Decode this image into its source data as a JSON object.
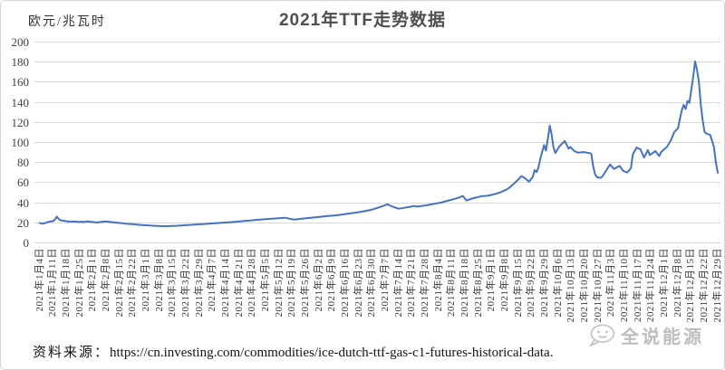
{
  "source": {
    "label": "资料来源：",
    "url": "https://cn.investing.com/commodities/ice-dutch-ttf-gas-c1-futures-historical-data."
  },
  "watermark": {
    "text": "全说能源",
    "icon": "speech-bubble-face"
  },
  "chart_data": {
    "type": "line",
    "title": "2021年TTF走势数据",
    "ylabel": "欧元/兆瓦时",
    "xlabel": "",
    "ylim": [
      0,
      200
    ],
    "yticks": [
      0,
      20,
      40,
      60,
      80,
      100,
      120,
      140,
      160,
      180,
      200
    ],
    "grid": "horizontal",
    "legend": "none",
    "line_color": "#4472c4",
    "grid_color": "#d9d9d9",
    "x_encoding": "day_of_year_2021",
    "x_range_days": [
      4,
      363
    ],
    "x_tick_labels": [
      "2021年1月4日",
      "2021年1月11日",
      "2021年1月18日",
      "2021年1月25日",
      "2021年2月1日",
      "2021年2月8日",
      "2021年2月15日",
      "2021年2月22日",
      "2021年3月1日",
      "2021年3月8日",
      "2021年3月15日",
      "2021年3月22日",
      "2021年3月29日",
      "2021年4月7日",
      "2021年4月14日",
      "2021年4月21日",
      "2021年4月28日",
      "2021年5月5日",
      "2021年5月12日",
      "2021年5月19日",
      "2021年5月26日",
      "2021年6月2日",
      "2021年6月9日",
      "2021年6月16日",
      "2021年6月23日",
      "2021年6月30日",
      "2021年7月7日",
      "2021年7月14日",
      "2021年7月21日",
      "2021年7月28日",
      "2021年8月4日",
      "2021年8月11日",
      "2021年8月18日",
      "2021年8月25日",
      "2021年9月1日",
      "2021年9月8日",
      "2021年9月15日",
      "2021年9月22日",
      "2021年9月29日",
      "2021年10月6日",
      "2021年10月13日",
      "2021年10月20日",
      "2021年10月27日",
      "2021年11月3日",
      "2021年11月10日",
      "2021年11月17日",
      "2021年11月24日",
      "2021年12月1日",
      "2021年12月8日",
      "2021年12月15日",
      "2021年12月22日",
      "2021年12月29日"
    ],
    "series": [
      {
        "name": "TTF",
        "unit": "欧元/兆瓦时",
        "points": [
          [
            4,
            19.5
          ],
          [
            5,
            18.6
          ],
          [
            6,
            19.0
          ],
          [
            7,
            19.4
          ],
          [
            8,
            20.3
          ],
          [
            11,
            21.3
          ],
          [
            12,
            23.0
          ],
          [
            13,
            25.8
          ],
          [
            14,
            23.3
          ],
          [
            15,
            22.0
          ],
          [
            18,
            21.2
          ],
          [
            19,
            20.7
          ],
          [
            20,
            21.0
          ],
          [
            21,
            20.6
          ],
          [
            22,
            20.9
          ],
          [
            25,
            20.4
          ],
          [
            26,
            20.7
          ],
          [
            27,
            20.3
          ],
          [
            28,
            20.6
          ],
          [
            29,
            20.9
          ],
          [
            32,
            20.4
          ],
          [
            34,
            19.9
          ],
          [
            36,
            20.4
          ],
          [
            39,
            21.0
          ],
          [
            41,
            20.5
          ],
          [
            43,
            20.0
          ],
          [
            46,
            19.5
          ],
          [
            48,
            19.0
          ],
          [
            50,
            18.6
          ],
          [
            53,
            18.2
          ],
          [
            55,
            17.8
          ],
          [
            57,
            17.5
          ],
          [
            59,
            17.2
          ],
          [
            61,
            17.0
          ],
          [
            63,
            16.8
          ],
          [
            66,
            16.5
          ],
          [
            68,
            16.3
          ],
          [
            71,
            16.2
          ],
          [
            74,
            16.4
          ],
          [
            76,
            16.6
          ],
          [
            79,
            16.9
          ],
          [
            81,
            17.2
          ],
          [
            84,
            17.5
          ],
          [
            86,
            17.8
          ],
          [
            89,
            18.1
          ],
          [
            92,
            18.5
          ],
          [
            95,
            18.9
          ],
          [
            98,
            19.3
          ],
          [
            101,
            19.7
          ],
          [
            104,
            20.1
          ],
          [
            107,
            20.5
          ],
          [
            110,
            21.0
          ],
          [
            113,
            21.5
          ],
          [
            116,
            22.0
          ],
          [
            119,
            22.5
          ],
          [
            122,
            23.0
          ],
          [
            125,
            23.4
          ],
          [
            128,
            23.8
          ],
          [
            131,
            24.2
          ],
          [
            134,
            24.6
          ],
          [
            137,
            23.3
          ],
          [
            139,
            22.8
          ],
          [
            142,
            23.5
          ],
          [
            145,
            24.1
          ],
          [
            148,
            24.7
          ],
          [
            151,
            25.2
          ],
          [
            153,
            25.7
          ],
          [
            156,
            26.2
          ],
          [
            159,
            26.7
          ],
          [
            162,
            27.3
          ],
          [
            165,
            28.0
          ],
          [
            168,
            28.8
          ],
          [
            171,
            29.6
          ],
          [
            174,
            30.5
          ],
          [
            177,
            31.5
          ],
          [
            180,
            32.8
          ],
          [
            183,
            34.5
          ],
          [
            186,
            36.5
          ],
          [
            188,
            38.0
          ],
          [
            191,
            35.5
          ],
          [
            194,
            33.6
          ],
          [
            197,
            34.5
          ],
          [
            200,
            35.5
          ],
          [
            202,
            36.3
          ],
          [
            204,
            35.7
          ],
          [
            206,
            36.2
          ],
          [
            209,
            37.0
          ],
          [
            211,
            37.8
          ],
          [
            214,
            38.8
          ],
          [
            217,
            40.0
          ],
          [
            220,
            41.5
          ],
          [
            223,
            43.0
          ],
          [
            226,
            44.8
          ],
          [
            228,
            46.3
          ],
          [
            230,
            41.8
          ],
          [
            233,
            43.8
          ],
          [
            236,
            45.2
          ],
          [
            238,
            46.0
          ],
          [
            241,
            46.5
          ],
          [
            243,
            47.3
          ],
          [
            245,
            48.2
          ],
          [
            248,
            50.0
          ],
          [
            251,
            52.5
          ],
          [
            253,
            55.0
          ],
          [
            255,
            58.5
          ],
          [
            257,
            62.0
          ],
          [
            259,
            66.0
          ],
          [
            261,
            64.0
          ],
          [
            263,
            60.5
          ],
          [
            265,
            65.0
          ],
          [
            266,
            72.0
          ],
          [
            267,
            70.0
          ],
          [
            268,
            74.5
          ],
          [
            269,
            83.0
          ],
          [
            270,
            90.0
          ],
          [
            271,
            97.0
          ],
          [
            272,
            91.5
          ],
          [
            273,
            103.0
          ],
          [
            274,
            116.2
          ],
          [
            275,
            108.0
          ],
          [
            276,
            95.0
          ],
          [
            277,
            89.0
          ],
          [
            279,
            95.5
          ],
          [
            282,
            101.0
          ],
          [
            284,
            93.5
          ],
          [
            285,
            95.0
          ],
          [
            287,
            91.0
          ],
          [
            289,
            89.5
          ],
          [
            292,
            90.0
          ],
          [
            295,
            89.0
          ],
          [
            296,
            88.5
          ],
          [
            297,
            76.0
          ],
          [
            298,
            68.0
          ],
          [
            299,
            65.0
          ],
          [
            301,
            64.3
          ],
          [
            302,
            66.0
          ],
          [
            304,
            72.0
          ],
          [
            306,
            77.7
          ],
          [
            308,
            73.2
          ],
          [
            311,
            76.2
          ],
          [
            313,
            71.2
          ],
          [
            315,
            69.6
          ],
          [
            317,
            74.0
          ],
          [
            318,
            87.4
          ],
          [
            320,
            94.5
          ],
          [
            322,
            92.8
          ],
          [
            324,
            84.6
          ],
          [
            326,
            92.0
          ],
          [
            327,
            87.0
          ],
          [
            330,
            91.0
          ],
          [
            332,
            86.0
          ],
          [
            333,
            90.0
          ],
          [
            336,
            95.0
          ],
          [
            338,
            101.0
          ],
          [
            340,
            110.0
          ],
          [
            342,
            114.0
          ],
          [
            344,
            132.0
          ],
          [
            345,
            137.0
          ],
          [
            346,
            133.0
          ],
          [
            347,
            141.0
          ],
          [
            348,
            139.0
          ],
          [
            349,
            152.0
          ],
          [
            350,
            165.0
          ],
          [
            351,
            180.3
          ],
          [
            352,
            172.0
          ],
          [
            353,
            160.0
          ],
          [
            354,
            138.0
          ],
          [
            355,
            122.0
          ],
          [
            356,
            110.0
          ],
          [
            357,
            108.5
          ],
          [
            359,
            107.0
          ],
          [
            361,
            95.0
          ],
          [
            362,
            80.0
          ],
          [
            363,
            69.5
          ]
        ]
      }
    ]
  }
}
